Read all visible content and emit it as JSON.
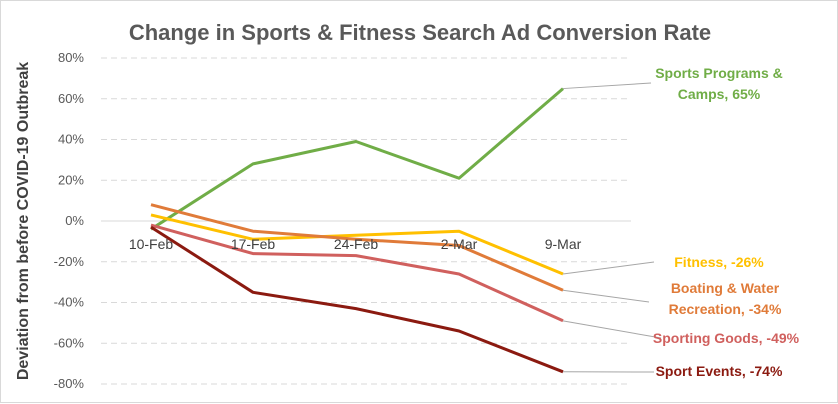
{
  "chart_data": {
    "type": "line",
    "title": "Change in Sports & Fitness  Search Ad Conversion Rate",
    "xlabel": "",
    "ylabel": "Deviation from before COVID-19 Outbreak",
    "ylim": [
      -80,
      80
    ],
    "yticks": [
      "80%",
      "60%",
      "40%",
      "20%",
      "0%",
      "-20%",
      "-40%",
      "-60%",
      "-80%"
    ],
    "categories": [
      "10-Feb",
      "17-Feb",
      "24-Feb",
      "2-Mar",
      "9-Mar"
    ],
    "grid": true,
    "legend": "none",
    "series": [
      {
        "key": "sports_programs",
        "color": "#70ad47",
        "values": [
          -4,
          28,
          39,
          21,
          65
        ],
        "label_lines": [
          "Sports Programs &",
          "Camps, 65%"
        ]
      },
      {
        "key": "fitness",
        "color": "#ffc000",
        "values": [
          3,
          -9,
          -7,
          -5,
          -26
        ],
        "label_lines": [
          "Fitness, -26%"
        ]
      },
      {
        "key": "boating",
        "color": "#e07b39",
        "values": [
          8,
          -5,
          -9,
          -12,
          -34
        ],
        "label_lines": [
          "Boating & Water",
          "Recreation, -34%"
        ]
      },
      {
        "key": "sporting_goods",
        "color": "#d0605e",
        "values": [
          -2,
          -16,
          -17,
          -26,
          -49
        ],
        "label_lines": [
          "Sporting Goods, -49%"
        ]
      },
      {
        "key": "sport_events",
        "color": "#8b1a10",
        "values": [
          -3,
          -35,
          -43,
          -54,
          -74
        ],
        "label_lines": [
          "Sport Events, -74%"
        ]
      }
    ]
  }
}
